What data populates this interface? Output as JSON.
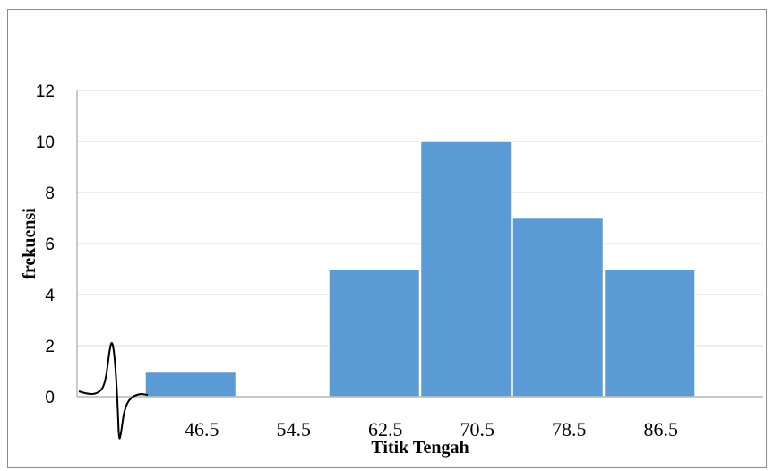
{
  "chart_data": {
    "type": "bar",
    "categories": [
      "46.5",
      "54.5",
      "62.5",
      "70.5",
      "78.5",
      "86.5"
    ],
    "values": [
      1,
      0,
      5,
      10,
      7,
      5
    ],
    "title": "",
    "xlabel": "Titik Tengah",
    "ylabel": "frekuensi",
    "ylim": [
      0,
      12
    ],
    "y_ticks": [
      "0",
      "2",
      "4",
      "6",
      "8",
      "10",
      "12"
    ],
    "grid": true,
    "legend": "none",
    "colors": {
      "bar": "#5b9bd5",
      "grid": "#d9d9d9",
      "axis": "#a6a6a6",
      "frame": "#8c8c8c"
    }
  }
}
